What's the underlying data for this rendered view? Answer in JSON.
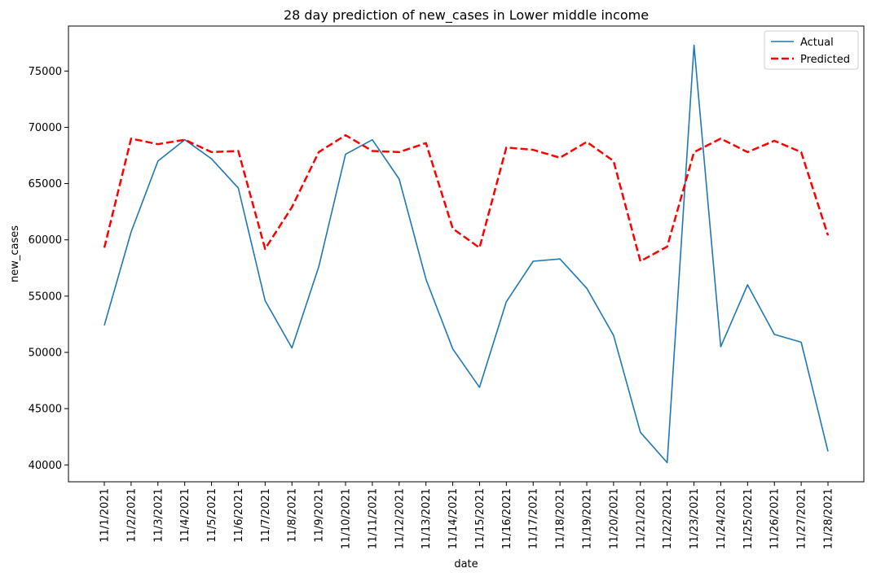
{
  "chart_data": {
    "type": "line",
    "title": "28 day prediction of new_cases in Lower middle income",
    "xlabel": "date",
    "ylabel": "new_cases",
    "x": [
      "11/1/2021",
      "11/2/2021",
      "11/3/2021",
      "11/4/2021",
      "11/5/2021",
      "11/6/2021",
      "11/7/2021",
      "11/8/2021",
      "11/9/2021",
      "11/10/2021",
      "11/11/2021",
      "11/12/2021",
      "11/13/2021",
      "11/14/2021",
      "11/15/2021",
      "11/16/2021",
      "11/17/2021",
      "11/18/2021",
      "11/19/2021",
      "11/20/2021",
      "11/21/2021",
      "11/22/2021",
      "11/23/2021",
      "11/24/2021",
      "11/25/2021",
      "11/26/2021",
      "11/27/2021",
      "11/28/2021"
    ],
    "ylim": [
      38500,
      79000
    ],
    "yticks": [
      40000,
      45000,
      50000,
      55000,
      60000,
      65000,
      70000,
      75000
    ],
    "grid": false,
    "legend_position": "top-right",
    "series": [
      {
        "name": "Actual",
        "color": "#1f77b4",
        "style": "solid",
        "values": [
          52400,
          60700,
          67000,
          68900,
          67200,
          64600,
          54600,
          50400,
          57600,
          67600,
          68900,
          65400,
          56500,
          50300,
          46900,
          54500,
          58100,
          58300,
          55700,
          51500,
          42900,
          40200,
          77300,
          50500,
          56000,
          51600,
          50900,
          41200
        ]
      },
      {
        "name": "Predicted",
        "color": "#ff0000",
        "style": "dashed",
        "values": [
          59300,
          69000,
          68500,
          68900,
          67800,
          67900,
          59200,
          62900,
          67800,
          69300,
          67900,
          67800,
          68600,
          61000,
          59300,
          68200,
          68000,
          67300,
          68700,
          67000,
          58100,
          59400,
          67800,
          69000,
          67800,
          68800,
          67800,
          60400
        ]
      }
    ]
  }
}
